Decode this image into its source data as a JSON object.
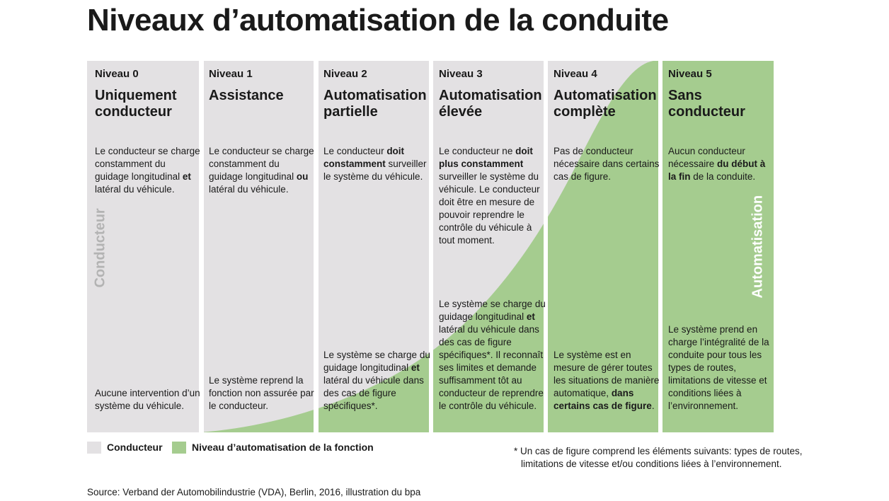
{
  "title": "Niveaux d’automatisation de la conduite",
  "colors": {
    "driver": "#e3e1e3",
    "automation": "#a5cc8f",
    "text": "#1a1a1a"
  },
  "vertical_labels": {
    "driver": "Conducteur",
    "automation": "Automatisation"
  },
  "levels": [
    {
      "niveau": "Niveau 0",
      "name_lines": [
        "Uniquement",
        "conducteur"
      ],
      "desc": [
        [
          "Le conducteur se charge constamment du guidage longitudinal ",
          false
        ],
        [
          "et",
          true
        ],
        [
          " latéral du véhicule.",
          false
        ]
      ],
      "sys": [
        [
          "Aucune intervention d’un système du véhicule.",
          false
        ]
      ]
    },
    {
      "niveau": "Niveau 1",
      "name_lines": [
        "Assistance"
      ],
      "desc": [
        [
          "Le conducteur se charge constamment du guidage longitudinal ",
          false
        ],
        [
          "ou",
          true
        ],
        [
          " latéral du véhicule.",
          false
        ]
      ],
      "sys": [
        [
          "Le système reprend la fonction non assurée par le conducteur.",
          false
        ]
      ]
    },
    {
      "niveau": "Niveau 2",
      "name_lines": [
        "Automatisation",
        "partielle"
      ],
      "desc": [
        [
          "Le conducteur ",
          false
        ],
        [
          "doit constamment",
          true
        ],
        [
          " surveiller le système du véhicule.",
          false
        ]
      ],
      "sys": [
        [
          "Le système se charge du guidage longitudinal ",
          false
        ],
        [
          "et",
          true
        ],
        [
          " latéral du véhicule dans des cas de figure spécifiques*.",
          false
        ]
      ]
    },
    {
      "niveau": "Niveau 3",
      "name_lines": [
        "Automatisation",
        "élevée"
      ],
      "desc": [
        [
          "Le conducteur ne ",
          false
        ],
        [
          "doit plus constamment",
          true
        ],
        [
          " surveiller le système du véhicule. Le conducteur doit être en mesure de pouvoir reprendre le contrôle du véhicule à tout moment.",
          false
        ]
      ],
      "sys": [
        [
          "Le système se charge du guidage longitudinal ",
          false
        ],
        [
          "et",
          true
        ],
        [
          " latéral du véhicule dans des cas de figure spécifiques*. Il reconnaît ses limites et demande suffisamment tôt au conducteur de reprendre le contrôle du véhicule.",
          false
        ]
      ]
    },
    {
      "niveau": "Niveau 4",
      "name_lines": [
        "Automatisation",
        "complète"
      ],
      "desc": [
        [
          "Pas de conducteur nécessaire dans certains cas de figure.",
          false
        ]
      ],
      "sys": [
        [
          "Le système est en mesure de gérer toutes les situations de manière automatique, ",
          false
        ],
        [
          "dans certains cas de figure",
          true
        ],
        [
          ".",
          false
        ]
      ]
    },
    {
      "niveau": "Niveau 5",
      "name_lines": [
        "Sans",
        "conducteur"
      ],
      "desc": [
        [
          "Aucun conducteur nécessaire ",
          false
        ],
        [
          "du début à la fin",
          true
        ],
        [
          " de la conduite.",
          false
        ]
      ],
      "sys": [
        [
          "Le système prend en charge l’intégralité de la conduite pour tous les types de routes, limitations de vitesse et conditions liées à l’environnement.",
          false
        ]
      ]
    }
  ],
  "legend": {
    "driver": "Conducteur",
    "automation": "Niveau d’automatisation de la fonction"
  },
  "footnote_lines": [
    "* Un cas de figure comprend les éléments suivants: types de routes,",
    "limitations de vitesse et/ou conditions liées à l’environnement."
  ],
  "source": "Source: Verband der Automobilindustrie (VDA), Berlin, 2016, illustration du bpa"
}
